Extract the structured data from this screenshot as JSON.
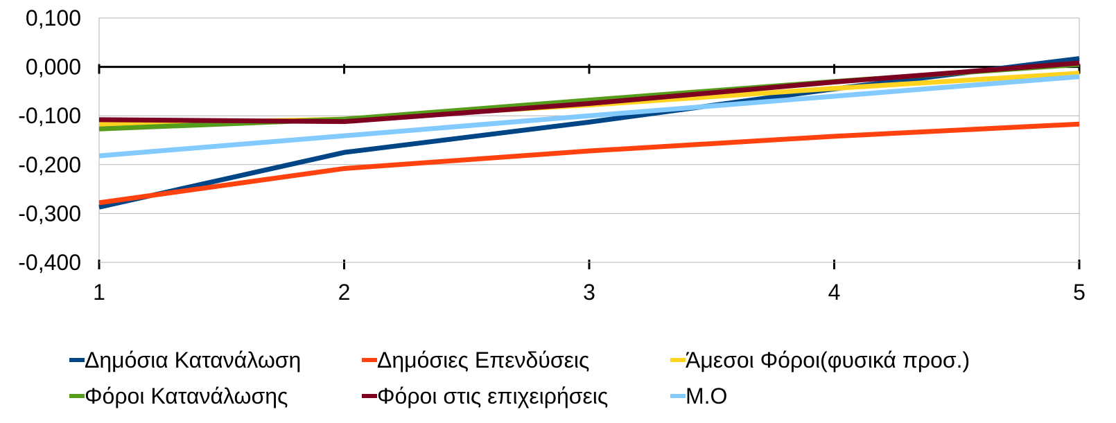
{
  "chart_data": {
    "type": "line",
    "title": "",
    "xlabel": "",
    "ylabel": "",
    "x": [
      1,
      2,
      3,
      4,
      5
    ],
    "x_tick_labels": [
      "1",
      "2",
      "3",
      "4",
      "5"
    ],
    "ylim": [
      -0.4,
      0.1
    ],
    "y_ticks": [
      0.1,
      0.0,
      -0.1,
      -0.2,
      -0.3,
      -0.4
    ],
    "y_tick_labels": [
      "0,100",
      "0,000",
      "-0,100",
      "-0,200",
      "-0,300",
      "-0,400"
    ],
    "grid": "horizontal",
    "legend_position": "bottom",
    "series": [
      {
        "name": "Δημόσια Κατανάλωση",
        "color": "#004586",
        "values": [
          -0.287,
          -0.175,
          -0.113,
          -0.045,
          0.017
        ]
      },
      {
        "name": "Δημόσιες Επενδύσεις",
        "color": "#ff420e",
        "values": [
          -0.278,
          -0.208,
          -0.172,
          -0.142,
          -0.117
        ]
      },
      {
        "name": "Άμεσοι Φόροι(φυσικά προσ.)",
        "color": "#ffd320",
        "values": [
          -0.118,
          -0.107,
          -0.078,
          -0.044,
          -0.013
        ]
      },
      {
        "name": "Φόροι Κατανάλωσης",
        "color": "#579d1c",
        "values": [
          -0.127,
          -0.107,
          -0.068,
          -0.03,
          0.005
        ]
      },
      {
        "name": "Φόροι στις επιχειρήσεις",
        "color": "#7e0021",
        "values": [
          -0.108,
          -0.112,
          -0.075,
          -0.031,
          0.008
        ]
      },
      {
        "name": "Μ.Ο",
        "color": "#83caff",
        "values": [
          -0.182,
          -0.141,
          -0.1,
          -0.06,
          -0.02
        ]
      }
    ]
  }
}
